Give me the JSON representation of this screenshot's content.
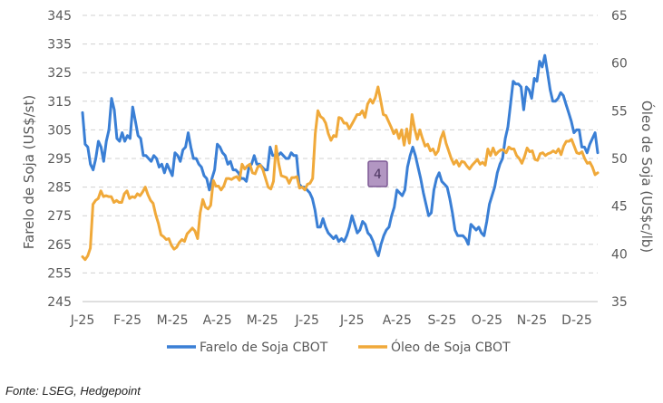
{
  "chart_data": {
    "type": "line",
    "x_tick_labels": [
      "J-25",
      "F-25",
      "M-25",
      "A-25",
      "M-25",
      "J-25",
      "J-25",
      "A-25",
      "S-25",
      "O-25",
      "N-25",
      "D-25"
    ],
    "y_left": {
      "label": "Farelo de Soja (US$/st)",
      "lim": [
        245,
        345
      ],
      "ticks": [
        "345",
        "335",
        "325",
        "315",
        "305",
        "295",
        "285",
        "275",
        "265",
        "255",
        "245"
      ]
    },
    "y_right": {
      "label": "Óleo de Soja (US$c/lb)",
      "lim": [
        35,
        65
      ],
      "ticks": [
        "65",
        "60",
        "55",
        "50",
        "45",
        "40",
        "35"
      ]
    },
    "grid": "horizontal dashed",
    "legend": {
      "position": "bottom-center"
    },
    "badge": "4",
    "series": [
      {
        "name": "Farelo de Soja CBOT",
        "axis": "left",
        "color": "#3A7FD5",
        "values": [
          311,
          300,
          299,
          293,
          291,
          295,
          301,
          299,
          294,
          301,
          305,
          316,
          312,
          302,
          301,
          304,
          301,
          303,
          302,
          313,
          308,
          303,
          302,
          296,
          296,
          295,
          294,
          296,
          295,
          292,
          293,
          290,
          293,
          291,
          289,
          297,
          296,
          294,
          298,
          299,
          304,
          299,
          295,
          295,
          293,
          292,
          289,
          288,
          284,
          288,
          291,
          300,
          299,
          297,
          296,
          293,
          294,
          291,
          291,
          290,
          288,
          288,
          287,
          292,
          293,
          296,
          293,
          293,
          292,
          291,
          291,
          299,
          296,
          296,
          296,
          297,
          296,
          295,
          295,
          297,
          296,
          296,
          286,
          285,
          285,
          284,
          283,
          281,
          277,
          271,
          271,
          274,
          271,
          269,
          268,
          267,
          268,
          266,
          267,
          266,
          268,
          271,
          275,
          272,
          269,
          270,
          273,
          272,
          269,
          268,
          266,
          263,
          261,
          265,
          268,
          270,
          271,
          275,
          278,
          284,
          283,
          282,
          284,
          292,
          296,
          299,
          296,
          292,
          288,
          283,
          279,
          275,
          276,
          284,
          288,
          290,
          287,
          286,
          285,
          281,
          276,
          270,
          268,
          268,
          268,
          267,
          265,
          272,
          271,
          270,
          271,
          269,
          268,
          273,
          279,
          282,
          285,
          290,
          293,
          295,
          302,
          306,
          314,
          322,
          321,
          321,
          320,
          312,
          320,
          319,
          316,
          323,
          322,
          329,
          327,
          331,
          325,
          319,
          315,
          315,
          316,
          318,
          317,
          314,
          311,
          308,
          304,
          305,
          305,
          299,
          299,
          297,
          300,
          302,
          304,
          297
        ]
      },
      {
        "name": "Óleo de Soja CBOT",
        "axis": "right",
        "color": "#F0A93A",
        "values": [
          39.7,
          39.4,
          39.8,
          40.6,
          45.2,
          45.6,
          45.8,
          46.6,
          46.0,
          46.1,
          46.0,
          46.0,
          45.4,
          45.6,
          45.4,
          45.4,
          46.3,
          46.6,
          45.8,
          46.0,
          45.9,
          46.3,
          46.1,
          46.5,
          47.0,
          46.2,
          45.6,
          45.3,
          44.1,
          43.2,
          42.0,
          41.8,
          41.5,
          41.6,
          40.9,
          40.5,
          40.7,
          41.2,
          41.5,
          41.3,
          42.1,
          42.4,
          42.7,
          42.4,
          41.6,
          44.3,
          45.7,
          44.9,
          44.7,
          45.1,
          47.7,
          47.1,
          47.1,
          46.7,
          47.1,
          47.9,
          47.9,
          47.8,
          48.0,
          48.1,
          47.7,
          49.4,
          48.9,
          49.2,
          49.4,
          48.5,
          48.4,
          49.1,
          49.3,
          48.8,
          47.9,
          47.0,
          46.8,
          47.6,
          51.3,
          49.5,
          48.2,
          48.1,
          48.0,
          47.4,
          48.0,
          48.0,
          48.1,
          46.9,
          47.0,
          46.7,
          47.3,
          47.4,
          47.9,
          52.6,
          55.0,
          54.4,
          54.2,
          53.7,
          52.6,
          51.9,
          52.4,
          52.3,
          54.3,
          54.2,
          53.7,
          53.7,
          53.1,
          53.6,
          54.1,
          54.6,
          54.6,
          55.0,
          54.3,
          55.7,
          56.2,
          55.8,
          56.4,
          57.5,
          56.1,
          54.6,
          54.5,
          53.9,
          53.3,
          52.6,
          53.0,
          52.1,
          53.0,
          51.4,
          53.1,
          51.6,
          54.6,
          53.1,
          52.0,
          53.0,
          52.1,
          51.3,
          51.5,
          50.8,
          51.0,
          50.4,
          50.8,
          52.1,
          52.8,
          51.6,
          50.8,
          50.0,
          49.4,
          49.8,
          49.2,
          49.7,
          49.6,
          49.2,
          48.9,
          49.3,
          49.6,
          49.9,
          49.4,
          49.6,
          49.3,
          51.0,
          50.3,
          51.1,
          50.4,
          50.7,
          50.9,
          50.9,
          50.6,
          51.2,
          51.0,
          51.0,
          50.3,
          50.0,
          49.5,
          50.2,
          51.1,
          50.7,
          50.8,
          49.9,
          49.8,
          50.5,
          50.6,
          50.3,
          50.5,
          50.6,
          50.8,
          50.6,
          51.0,
          50.4,
          51.3,
          51.8,
          51.8,
          52.0,
          51.3,
          50.6,
          50.5,
          50.7,
          50.0,
          49.5,
          49.6,
          49.1,
          48.3,
          48.5
        ]
      }
    ]
  },
  "source_text": "Fonte: LSEG, Hedgepoint"
}
